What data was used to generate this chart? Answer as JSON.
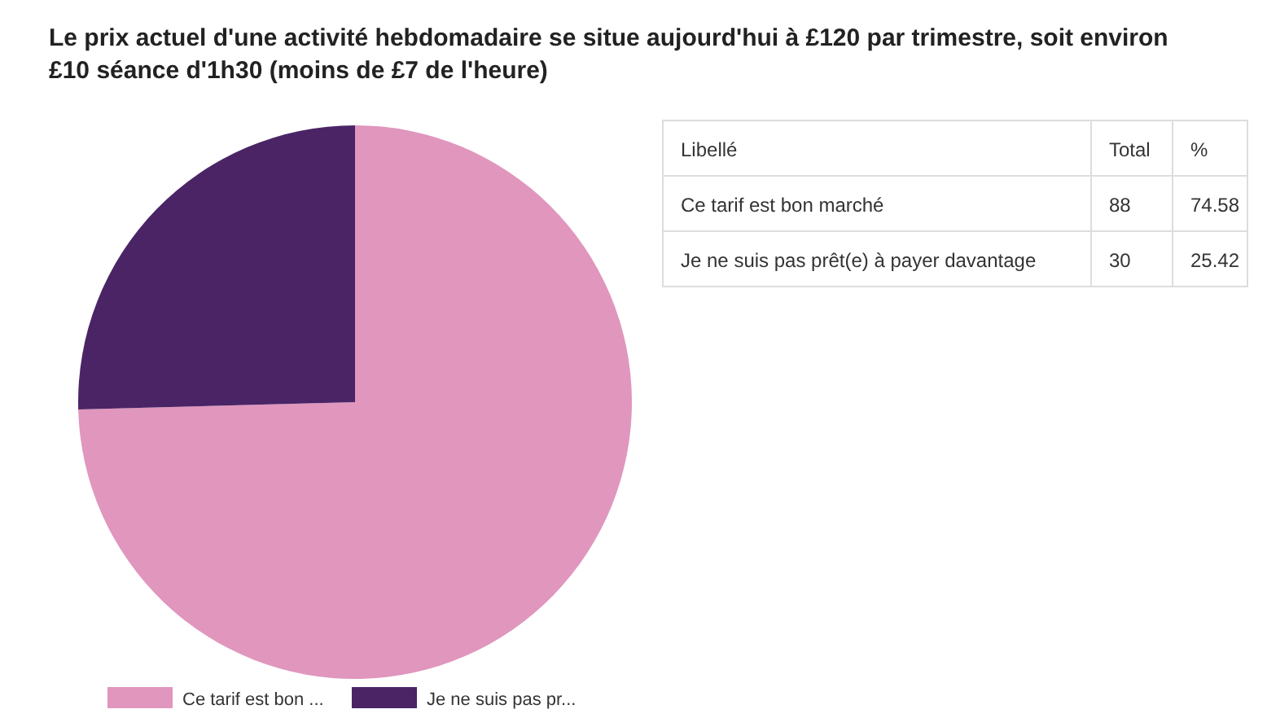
{
  "chart_data": [
    {
      "type": "pie",
      "title": "Le prix actuel d'une activité hebdomadaire se situe aujourd'hui à £120 par trimestre, soit environ £10 séance d'1h30 (moins de £7 de l'heure)",
      "categories": [
        "Ce tarif est bon ...",
        "Je ne suis pas pr..."
      ],
      "values": [
        74.58,
        25.42
      ],
      "colors": [
        "#e096bd",
        "#4b2466"
      ],
      "legend": "bottom"
    },
    {
      "type": "other",
      "annotations": [
        "Libellé",
        "Total",
        "%",
        "Ce tarif est bon marché",
        "88",
        "74.58",
        "Je ne suis pas prêt(e) à payer davantage",
        "30",
        "25.42"
      ]
    }
  ]
}
